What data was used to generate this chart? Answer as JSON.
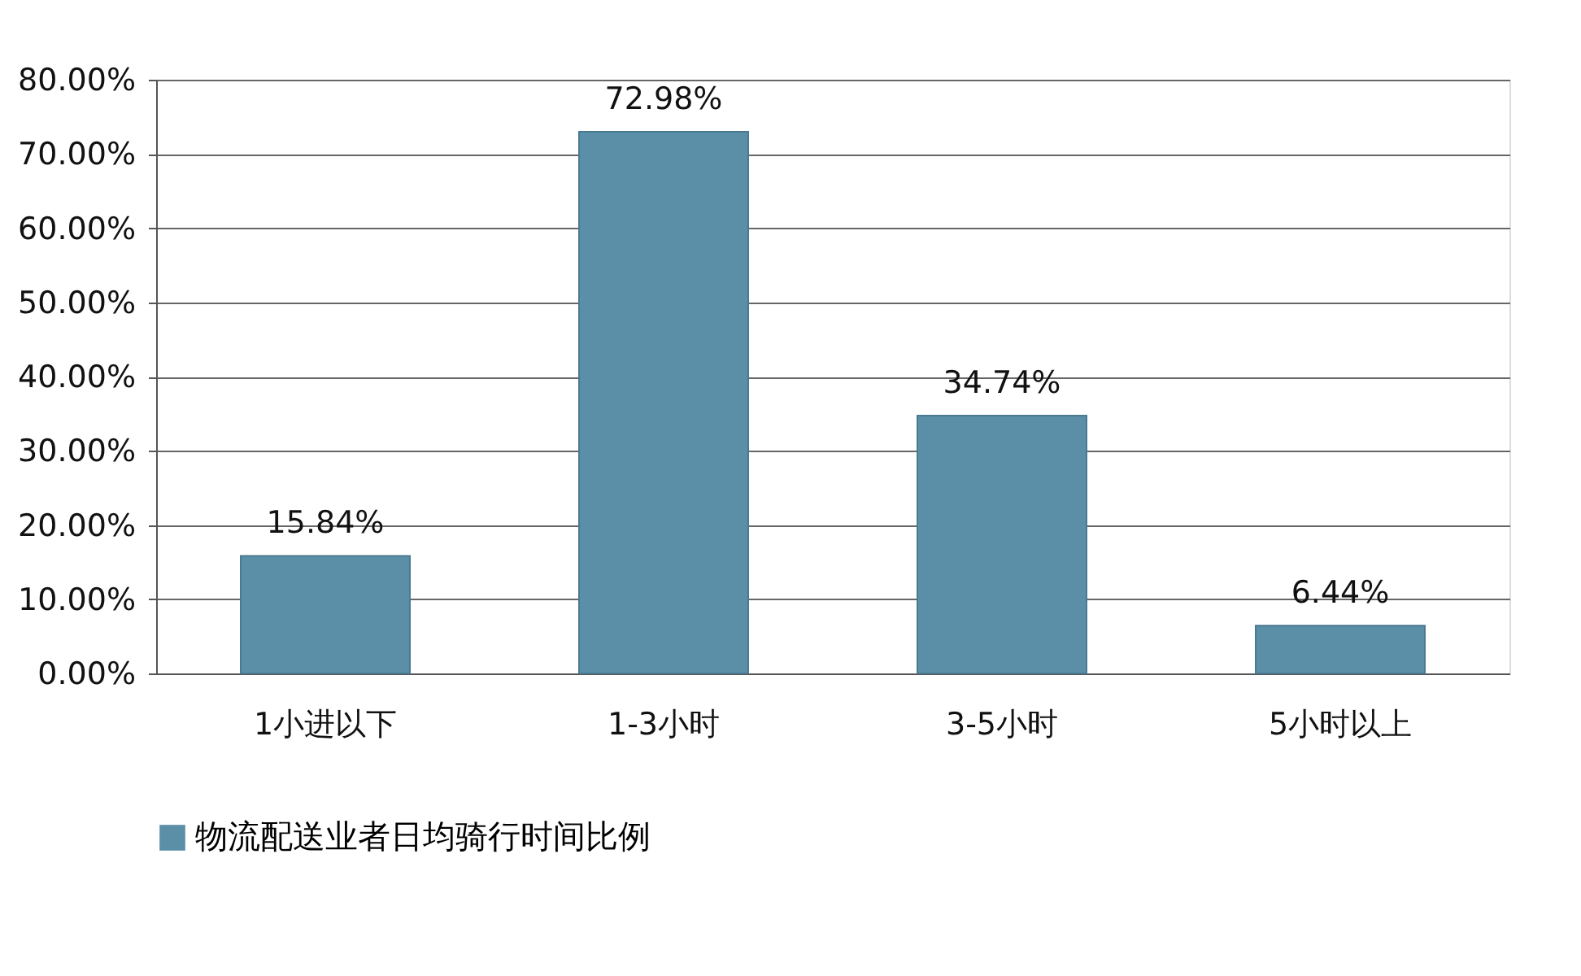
{
  "chart_data": {
    "type": "bar",
    "categories": [
      "1小进以下",
      "1-3小时",
      "3-5小时",
      "5小时以上"
    ],
    "series": [
      {
        "name": "物流配送业者日均骑行时间比例",
        "color": "#5b8fa8",
        "values": [
          15.84,
          72.98,
          34.74,
          6.44
        ]
      }
    ],
    "value_labels": [
      "15.84%",
      "72.98%",
      "34.74%",
      "6.44%"
    ],
    "ylim": [
      0,
      80
    ],
    "yticks": [
      {
        "value": 0,
        "label": "0.00%"
      },
      {
        "value": 10,
        "label": "10.00%"
      },
      {
        "value": 20,
        "label": "20.00%"
      },
      {
        "value": 30,
        "label": "30.00%"
      },
      {
        "value": 40,
        "label": "40.00%"
      },
      {
        "value": 50,
        "label": "50.00%"
      },
      {
        "value": 60,
        "label": "60.00%"
      },
      {
        "value": 70,
        "label": "70.00%"
      },
      {
        "value": 80,
        "label": "80.00%"
      }
    ],
    "grid": "y",
    "legend": "bottom"
  }
}
